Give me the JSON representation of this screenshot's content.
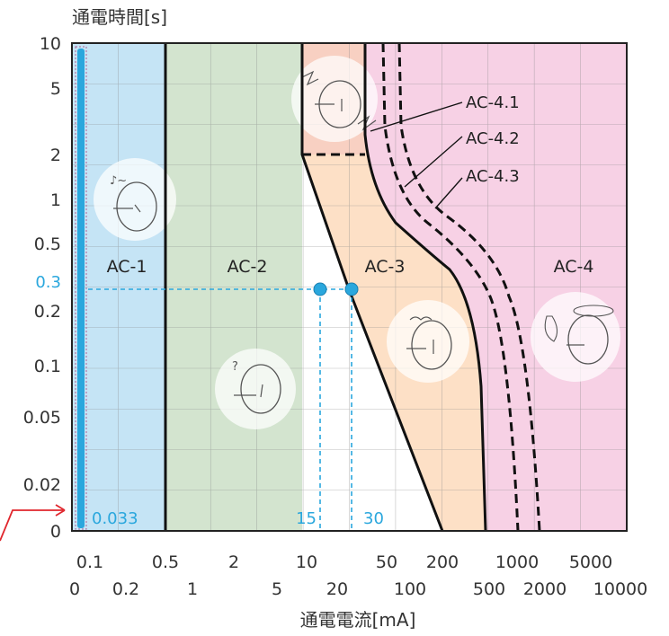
{
  "chart_data": {
    "type": "area",
    "xlabel": "通電電流[mA]",
    "ylabel": "通電時間[s]",
    "x_scale": "log",
    "y_scale": "log",
    "x_ticks_row1": [
      "0.1",
      "0.5",
      "2",
      "10",
      "50",
      "200",
      "1000",
      "5000"
    ],
    "x_ticks_row2": [
      "0",
      "0.2",
      "1",
      "5",
      "20",
      "100",
      "500",
      "2000",
      "10000"
    ],
    "y_ticks": [
      "10",
      "5",
      "2",
      "1",
      "0.5",
      "0.2",
      "0.1",
      "0.05",
      "0.02",
      "0"
    ],
    "highlight_y_tick": "0.3",
    "zones": [
      {
        "label": "AC-1",
        "color": "#c5e4f5"
      },
      {
        "label": "AC-2",
        "color": "#d3e4cf"
      },
      {
        "label": "AC-3",
        "color": "#fde0c6"
      },
      {
        "label": "AC-4",
        "color": "#f7d1e5"
      }
    ],
    "ac4_sublabels": [
      "AC-4.1",
      "AC-4.2",
      "AC-4.3"
    ],
    "points": [
      {
        "current_mA": 15,
        "time_s": 0.3,
        "label": "15"
      },
      {
        "current_mA": 30,
        "time_s": 0.3,
        "label": "30"
      }
    ],
    "threshold_label": "0.033",
    "grid": true,
    "accent_color": "#2aa7dd",
    "arrow_color": "#e0262d"
  }
}
